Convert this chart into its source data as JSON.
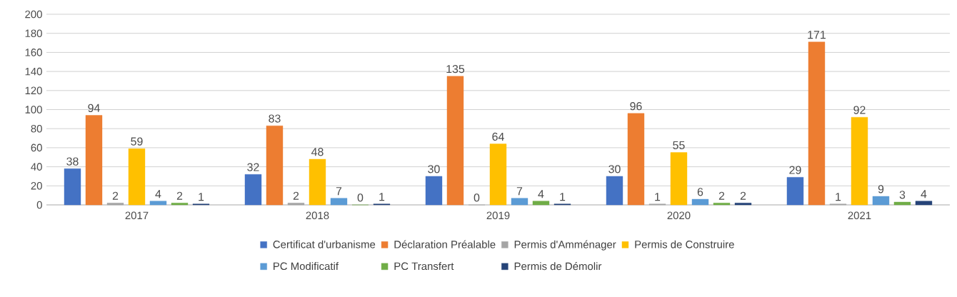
{
  "chart_data": {
    "type": "bar",
    "categories": [
      "2017",
      "2018",
      "2019",
      "2020",
      "2021"
    ],
    "series": [
      {
        "name": "Certificat d'urbanisme",
        "color": "#4472c4",
        "values": [
          38,
          32,
          30,
          30,
          29
        ]
      },
      {
        "name": "Déclaration Préalable",
        "color": "#ed7d31",
        "values": [
          94,
          83,
          135,
          96,
          171
        ]
      },
      {
        "name": "Permis d'Amménager",
        "color": "#a5a5a5",
        "values": [
          2,
          2,
          0,
          1,
          1
        ]
      },
      {
        "name": "Permis de Construire",
        "color": "#ffc000",
        "values": [
          59,
          48,
          64,
          55,
          92
        ]
      },
      {
        "name": "PC Modificatif",
        "color": "#5b9bd5",
        "values": [
          4,
          7,
          7,
          6,
          9
        ]
      },
      {
        "name": "PC Transfert",
        "color": "#70ad47",
        "values": [
          2,
          0,
          4,
          2,
          3
        ]
      },
      {
        "name": "Permis de Démolir",
        "color": "#264478",
        "values": [
          1,
          1,
          1,
          2,
          4
        ]
      }
    ],
    "ylim": [
      0,
      200
    ],
    "yticks": [
      0,
      20,
      40,
      60,
      80,
      100,
      120,
      140,
      160,
      180,
      200
    ],
    "grid": "y",
    "legend": "bottom",
    "data_labels": true
  }
}
